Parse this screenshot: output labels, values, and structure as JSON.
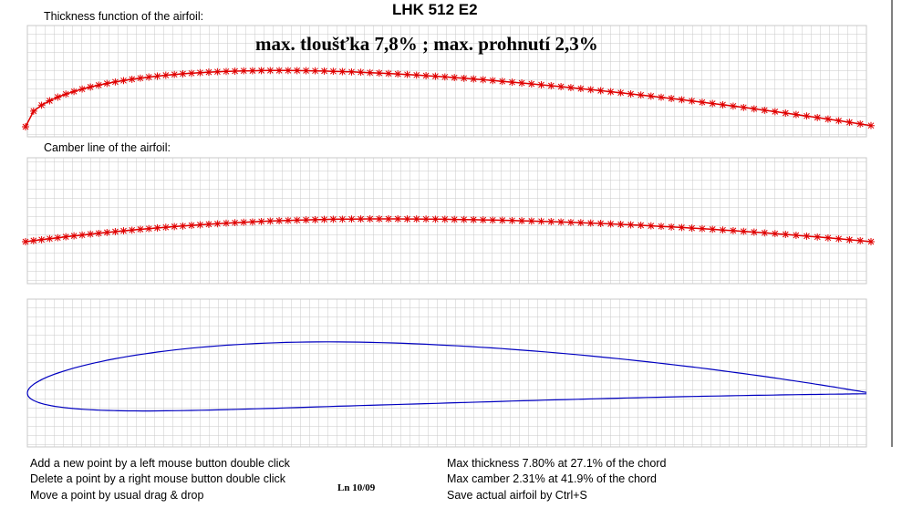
{
  "header": {
    "title": "LHK  512 E2",
    "summary": "max. tloušťka  7,8% ; max. prohnutí  2,3%"
  },
  "panels": {
    "thickness_label": "Thickness function of the airfoil:",
    "camber_label": "Camber line of the airfoil:"
  },
  "help": [
    "Add a new point by a left mouse button double click",
    "Delete a point by a right mouse button double click",
    "Move a point by usual drag & drop"
  ],
  "version": "Ln 10/09",
  "stats": [
    "Max thickness 7.80% at 27.1% of the chord",
    "Max camber 2.31% at 41.9% of the chord",
    "Save actual airfoil by Ctrl+S"
  ]
}
